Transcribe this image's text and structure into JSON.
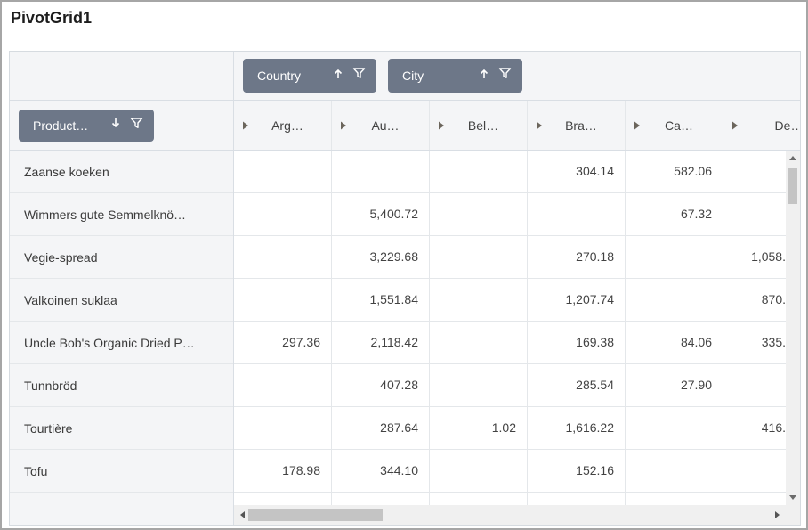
{
  "title": "PivotGrid1",
  "colors": {
    "chip_bg": "#6d7788",
    "chip_text": "#ffffff",
    "header_bg": "#f4f5f7",
    "grid_line": "#e4e7ea",
    "cell_text": "#424242",
    "scroll_track": "#f0f0f0",
    "scroll_thumb": "#c4c4c4"
  },
  "fields": {
    "column_fields": [
      {
        "label": "Country",
        "sort": "asc"
      },
      {
        "label": "City",
        "sort": "asc"
      }
    ],
    "row_field": {
      "label": "Product…",
      "sort": "desc"
    }
  },
  "grid": {
    "columns": [
      "Arg…",
      "Au…",
      "Bel…",
      "Bra…",
      "Ca…",
      "De…"
    ],
    "rows": [
      {
        "label": "Zaanse koeken",
        "values": [
          "",
          "",
          "",
          "304.14",
          "582.06",
          ""
        ]
      },
      {
        "label": "Wimmers gute Semmelknö…",
        "values": [
          "",
          "5,400.72",
          "",
          "",
          "67.32",
          ""
        ]
      },
      {
        "label": "Vegie-spread",
        "values": [
          "",
          "3,229.68",
          "",
          "270.18",
          "",
          "1,058."
        ]
      },
      {
        "label": "Valkoinen suklaa",
        "values": [
          "",
          "1,551.84",
          "",
          "1,207.74",
          "",
          "870."
        ]
      },
      {
        "label": "Uncle Bob's Organic Dried P…",
        "values": [
          "297.36",
          "2,118.42",
          "",
          "169.38",
          "84.06",
          "335."
        ]
      },
      {
        "label": "Tunnbröd",
        "values": [
          "",
          "407.28",
          "",
          "285.54",
          "27.90",
          ""
        ]
      },
      {
        "label": "Tourtière",
        "values": [
          "",
          "287.64",
          "1.02",
          "1,616.22",
          "",
          "416."
        ]
      },
      {
        "label": "Tofu",
        "values": [
          "178.98",
          "344.10",
          "",
          "152.16",
          "",
          ""
        ]
      }
    ]
  }
}
